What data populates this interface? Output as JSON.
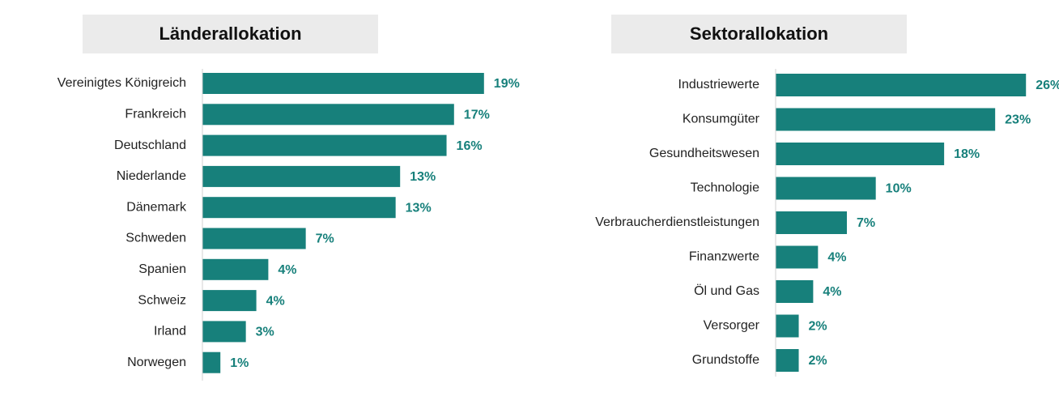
{
  "chart_data": [
    {
      "type": "barh",
      "title": "Länderallokation",
      "categories": [
        "Vereinigtes Königreich",
        "Frankreich",
        "Deutschland",
        "Niederlande",
        "Dänemark",
        "Schweden",
        "Spanien",
        "Schweiz",
        "Irland",
        "Norwegen"
      ],
      "values": [
        18.8,
        16.8,
        16.3,
        13.2,
        12.9,
        6.9,
        4.4,
        3.6,
        2.9,
        1.2
      ],
      "value_labels": [
        "19%",
        "17%",
        "16%",
        "13%",
        "13%",
        "7%",
        "4%",
        "4%",
        "3%",
        "1%"
      ],
      "color": "#17807b",
      "xlim": [
        0,
        20
      ]
    },
    {
      "type": "barh",
      "title": "Sektorallokation",
      "categories": [
        "Industriewerte",
        "Konsumgüter",
        "Gesundheitswesen",
        "Technologie",
        "Verbraucherdienstleistungen",
        "Finanzwerte",
        "Öl und Gas",
        "Versorger",
        "Grundstoffe"
      ],
      "values": [
        26.0,
        22.8,
        17.5,
        10.4,
        7.4,
        4.4,
        3.9,
        2.4,
        2.4
      ],
      "value_labels": [
        "26%",
        "23%",
        "18%",
        "10%",
        "7%",
        "4%",
        "4%",
        "2%",
        "2%"
      ],
      "color": "#17807b",
      "xlim": [
        0,
        28
      ]
    }
  ]
}
